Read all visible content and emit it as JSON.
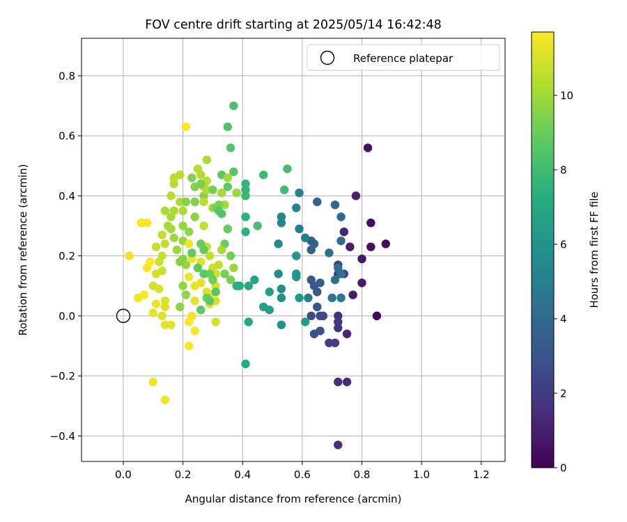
{
  "chart_data": {
    "type": "scatter",
    "title": "FOV centre drift starting at 2025/05/14 16:42:48",
    "xlabel": "Angular distance from reference (arcmin)",
    "ylabel": "Rotation from reference (arcmin)",
    "xlim": [
      -0.14,
      1.28
    ],
    "ylim": [
      -0.485,
      0.925
    ],
    "xticks": [
      "0.0",
      "0.2",
      "0.4",
      "0.6",
      "0.8",
      "1.0",
      "1.2"
    ],
    "xtick_values": [
      0.0,
      0.2,
      0.4,
      0.6,
      0.8,
      1.0,
      1.2
    ],
    "yticks": [
      "−0.4",
      "−0.2",
      "0.0",
      "0.2",
      "0.4",
      "0.6",
      "0.8"
    ],
    "ytick_values": [
      -0.4,
      -0.2,
      0.0,
      0.2,
      0.4,
      0.6,
      0.8
    ],
    "grid": true,
    "legend": {
      "placement": "top-right",
      "label": "Reference platepar"
    },
    "reference_point": [
      0.0,
      0.0
    ],
    "colorbar": {
      "label": "Hours from first FF file",
      "colormap": "viridis",
      "range": [
        0,
        11.7
      ],
      "ticks": [
        "0",
        "2",
        "4",
        "6",
        "8",
        "10"
      ],
      "tick_values": [
        0,
        2,
        4,
        6,
        8,
        10
      ]
    },
    "series": [
      {
        "points": [
          [
            0.85,
            0.0,
            0.2
          ],
          [
            0.88,
            0.24,
            0.3
          ],
          [
            0.83,
            0.31,
            0.4
          ],
          [
            0.83,
            0.23,
            0.5
          ],
          [
            0.82,
            0.56,
            0.6
          ],
          [
            0.8,
            0.19,
            0.7
          ],
          [
            0.8,
            0.11,
            0.8
          ],
          [
            0.77,
            0.07,
            0.9
          ],
          [
            0.76,
            0.23,
            1.0
          ],
          [
            0.78,
            0.4,
            1.1
          ],
          [
            0.74,
            0.28,
            1.2
          ],
          [
            0.75,
            -0.06,
            1.3
          ],
          [
            0.75,
            -0.22,
            1.4
          ],
          [
            0.72,
            -0.22,
            1.5
          ],
          [
            0.72,
            -0.43,
            1.6
          ],
          [
            0.72,
            0.0,
            1.7
          ],
          [
            0.72,
            -0.02,
            1.8
          ],
          [
            0.72,
            -0.04,
            1.9
          ],
          [
            0.71,
            -0.09,
            2.0
          ],
          [
            0.69,
            -0.09,
            2.1
          ],
          [
            0.72,
            0.17,
            2.2
          ],
          [
            0.72,
            0.14,
            2.3
          ],
          [
            0.74,
            0.14,
            2.4
          ],
          [
            0.66,
            0.0,
            2.5
          ],
          [
            0.67,
            0.0,
            2.6
          ],
          [
            0.63,
            0.0,
            2.7
          ],
          [
            0.66,
            -0.05,
            2.8
          ],
          [
            0.64,
            -0.06,
            2.9
          ],
          [
            0.65,
            0.03,
            3.0
          ],
          [
            0.65,
            0.08,
            3.1
          ],
          [
            0.63,
            0.12,
            3.2
          ],
          [
            0.64,
            0.1,
            3.3
          ],
          [
            0.66,
            0.11,
            3.4
          ],
          [
            0.63,
            0.25,
            3.5
          ],
          [
            0.64,
            0.24,
            3.6
          ],
          [
            0.63,
            0.22,
            3.7
          ],
          [
            0.65,
            0.38,
            3.8
          ],
          [
            0.71,
            0.37,
            3.9
          ],
          [
            0.73,
            0.33,
            4.0
          ],
          [
            0.73,
            0.25,
            4.1
          ],
          [
            0.69,
            0.21,
            4.2
          ],
          [
            0.72,
            0.16,
            4.3
          ],
          [
            0.73,
            0.14,
            4.4
          ],
          [
            0.71,
            0.12,
            4.5
          ],
          [
            0.7,
            0.06,
            4.6
          ],
          [
            0.73,
            0.06,
            4.7
          ],
          [
            0.62,
            0.06,
            4.8
          ],
          [
            0.61,
            0.26,
            4.9
          ],
          [
            0.59,
            0.29,
            5.0
          ],
          [
            0.58,
            0.36,
            5.1
          ],
          [
            0.59,
            0.41,
            5.2
          ],
          [
            0.53,
            0.33,
            5.3
          ],
          [
            0.53,
            0.31,
            5.4
          ],
          [
            0.52,
            0.24,
            5.5
          ],
          [
            0.52,
            0.14,
            5.6
          ],
          [
            0.53,
            0.09,
            5.7
          ],
          [
            0.53,
            0.06,
            5.8
          ],
          [
            0.53,
            -0.03,
            5.9
          ],
          [
            0.58,
            0.14,
            6.0
          ],
          [
            0.58,
            0.13,
            6.1
          ],
          [
            0.58,
            0.2,
            6.2
          ],
          [
            0.59,
            0.06,
            6.3
          ],
          [
            0.61,
            -0.02,
            6.4
          ],
          [
            0.49,
            0.08,
            6.5
          ],
          [
            0.49,
            0.02,
            6.6
          ],
          [
            0.47,
            0.03,
            6.7
          ],
          [
            0.44,
            0.12,
            6.8
          ],
          [
            0.42,
            0.1,
            6.9
          ],
          [
            0.42,
            -0.02,
            7.0
          ],
          [
            0.41,
            -0.16,
            7.1
          ],
          [
            0.39,
            0.1,
            7.2
          ],
          [
            0.38,
            0.1,
            7.3
          ],
          [
            0.41,
            0.33,
            7.4
          ],
          [
            0.41,
            0.28,
            7.5
          ],
          [
            0.41,
            0.44,
            7.6
          ],
          [
            0.41,
            0.42,
            7.7
          ],
          [
            0.41,
            0.4,
            7.8
          ],
          [
            0.47,
            0.47,
            7.9
          ],
          [
            0.54,
            0.42,
            8.0
          ],
          [
            0.55,
            0.49,
            8.1
          ],
          [
            0.45,
            0.3,
            8.2
          ],
          [
            0.37,
            0.7,
            8.3
          ],
          [
            0.35,
            0.63,
            8.4
          ],
          [
            0.36,
            0.56,
            8.5
          ],
          [
            0.37,
            0.48,
            8.6
          ],
          [
            0.35,
            0.43,
            8.7
          ],
          [
            0.33,
            0.47,
            8.8
          ],
          [
            0.35,
            0.29,
            8.9
          ],
          [
            0.34,
            0.24,
            9.0
          ],
          [
            0.36,
            0.2,
            9.1
          ],
          [
            0.34,
            0.14,
            9.2
          ],
          [
            0.36,
            0.12,
            9.3
          ],
          [
            0.23,
            0.46,
            9.4
          ],
          [
            0.27,
            0.4,
            9.5
          ],
          [
            0.24,
            0.33,
            9.6
          ],
          [
            0.22,
            0.28,
            9.7
          ],
          [
            0.2,
            0.25,
            9.8
          ],
          [
            0.18,
            0.22,
            9.9
          ],
          [
            0.17,
            0.26,
            10.0
          ],
          [
            0.16,
            0.29,
            10.0
          ],
          [
            0.15,
            0.3,
            10.1
          ],
          [
            0.16,
            0.33,
            10.1
          ],
          [
            0.14,
            0.35,
            10.2
          ],
          [
            0.17,
            0.35,
            10.2
          ],
          [
            0.2,
            0.35,
            10.3
          ],
          [
            0.19,
            0.38,
            10.3
          ],
          [
            0.16,
            0.4,
            10.4
          ],
          [
            0.17,
            0.44,
            10.4
          ],
          [
            0.17,
            0.46,
            10.5
          ],
          [
            0.19,
            0.47,
            10.5
          ],
          [
            0.14,
            0.24,
            10.6
          ],
          [
            0.13,
            0.27,
            10.6
          ],
          [
            0.13,
            0.2,
            10.7
          ],
          [
            0.11,
            0.23,
            10.7
          ],
          [
            0.12,
            0.18,
            10.8
          ],
          [
            0.13,
            0.15,
            10.8
          ],
          [
            0.11,
            0.14,
            10.9
          ],
          [
            0.1,
            0.1,
            10.9
          ],
          [
            0.12,
            0.09,
            11.0
          ],
          [
            0.14,
            0.05,
            11.0
          ],
          [
            0.14,
            0.03,
            11.1
          ],
          [
            0.13,
            0.0,
            11.1
          ],
          [
            0.14,
            -0.03,
            11.2
          ],
          [
            0.16,
            -0.03,
            11.2
          ],
          [
            0.11,
            0.04,
            11.3
          ],
          [
            0.1,
            0.01,
            11.3
          ],
          [
            0.1,
            -0.22,
            11.4
          ],
          [
            0.14,
            -0.28,
            11.4
          ],
          [
            0.02,
            0.2,
            11.5
          ],
          [
            0.05,
            0.06,
            11.5
          ],
          [
            0.06,
            0.31,
            11.6
          ],
          [
            0.08,
            0.31,
            11.6
          ],
          [
            0.09,
            0.18,
            11.7
          ],
          [
            0.08,
            0.16,
            11.7
          ],
          [
            0.07,
            0.07,
            11.7
          ],
          [
            0.21,
            0.63,
            11.7
          ],
          [
            0.22,
            -0.1,
            11.7
          ],
          [
            0.24,
            -0.05,
            11.6
          ],
          [
            0.22,
            -0.02,
            11.6
          ],
          [
            0.23,
            0.0,
            11.5
          ],
          [
            0.22,
            0.13,
            11.5
          ],
          [
            0.23,
            0.19,
            11.4
          ],
          [
            0.22,
            0.24,
            11.4
          ],
          [
            0.24,
            0.1,
            11.3
          ],
          [
            0.24,
            0.05,
            11.3
          ],
          [
            0.26,
            0.11,
            11.2
          ],
          [
            0.26,
            0.18,
            11.2
          ],
          [
            0.28,
            0.08,
            11.1
          ],
          [
            0.29,
            0.07,
            11.1
          ],
          [
            0.29,
            0.04,
            11.0
          ],
          [
            0.31,
            0.05,
            11.0
          ],
          [
            0.31,
            0.1,
            10.9
          ],
          [
            0.31,
            -0.02,
            10.9
          ],
          [
            0.3,
            0.16,
            10.8
          ],
          [
            0.31,
            0.14,
            10.8
          ],
          [
            0.32,
            0.17,
            10.7
          ],
          [
            0.29,
            0.2,
            10.7
          ],
          [
            0.28,
            0.23,
            10.6
          ],
          [
            0.27,
            0.3,
            10.6
          ],
          [
            0.27,
            0.38,
            10.5
          ],
          [
            0.28,
            0.42,
            10.5
          ],
          [
            0.28,
            0.45,
            10.4
          ],
          [
            0.25,
            0.49,
            10.4
          ],
          [
            0.26,
            0.47,
            10.3
          ],
          [
            0.27,
            0.43,
            10.3
          ],
          [
            0.28,
            0.52,
            10.2
          ],
          [
            0.3,
            0.36,
            10.2
          ],
          [
            0.33,
            0.41,
            10.1
          ],
          [
            0.33,
            0.22,
            10.1
          ],
          [
            0.34,
            0.37,
            10.0
          ],
          [
            0.35,
            0.46,
            10.0
          ],
          [
            0.37,
            0.16,
            9.9
          ],
          [
            0.38,
            0.41,
            9.9
          ],
          [
            0.2,
            0.3,
            9.8
          ],
          [
            0.21,
            0.17,
            9.8
          ],
          [
            0.2,
            0.1,
            9.7
          ],
          [
            0.21,
            0.07,
            9.7
          ],
          [
            0.19,
            0.03,
            9.6
          ],
          [
            0.2,
            0.19,
            9.6
          ],
          [
            0.19,
            0.18,
            9.5
          ],
          [
            0.21,
            0.38,
            9.5
          ],
          [
            0.24,
            0.38,
            9.4
          ],
          [
            0.24,
            0.43,
            9.4
          ],
          [
            0.26,
            0.44,
            9.3
          ],
          [
            0.32,
            0.37,
            9.3
          ],
          [
            0.3,
            0.42,
            9.2
          ],
          [
            0.31,
            0.36,
            9.2
          ],
          [
            0.29,
            0.14,
            9.1
          ],
          [
            0.3,
            0.12,
            9.1
          ],
          [
            0.28,
            0.06,
            9.0
          ],
          [
            0.26,
            0.24,
            9.0
          ],
          [
            0.27,
            0.22,
            8.9
          ],
          [
            0.23,
            0.21,
            8.9
          ],
          [
            0.25,
            0.16,
            8.8
          ],
          [
            0.26,
            0.02,
            8.8
          ],
          [
            0.27,
            0.14,
            8.7
          ],
          [
            0.29,
            0.05,
            8.7
          ],
          [
            0.31,
            0.08,
            8.6
          ],
          [
            0.32,
            0.35,
            8.6
          ],
          [
            0.33,
            0.34,
            8.5
          ]
        ]
      }
    ]
  }
}
